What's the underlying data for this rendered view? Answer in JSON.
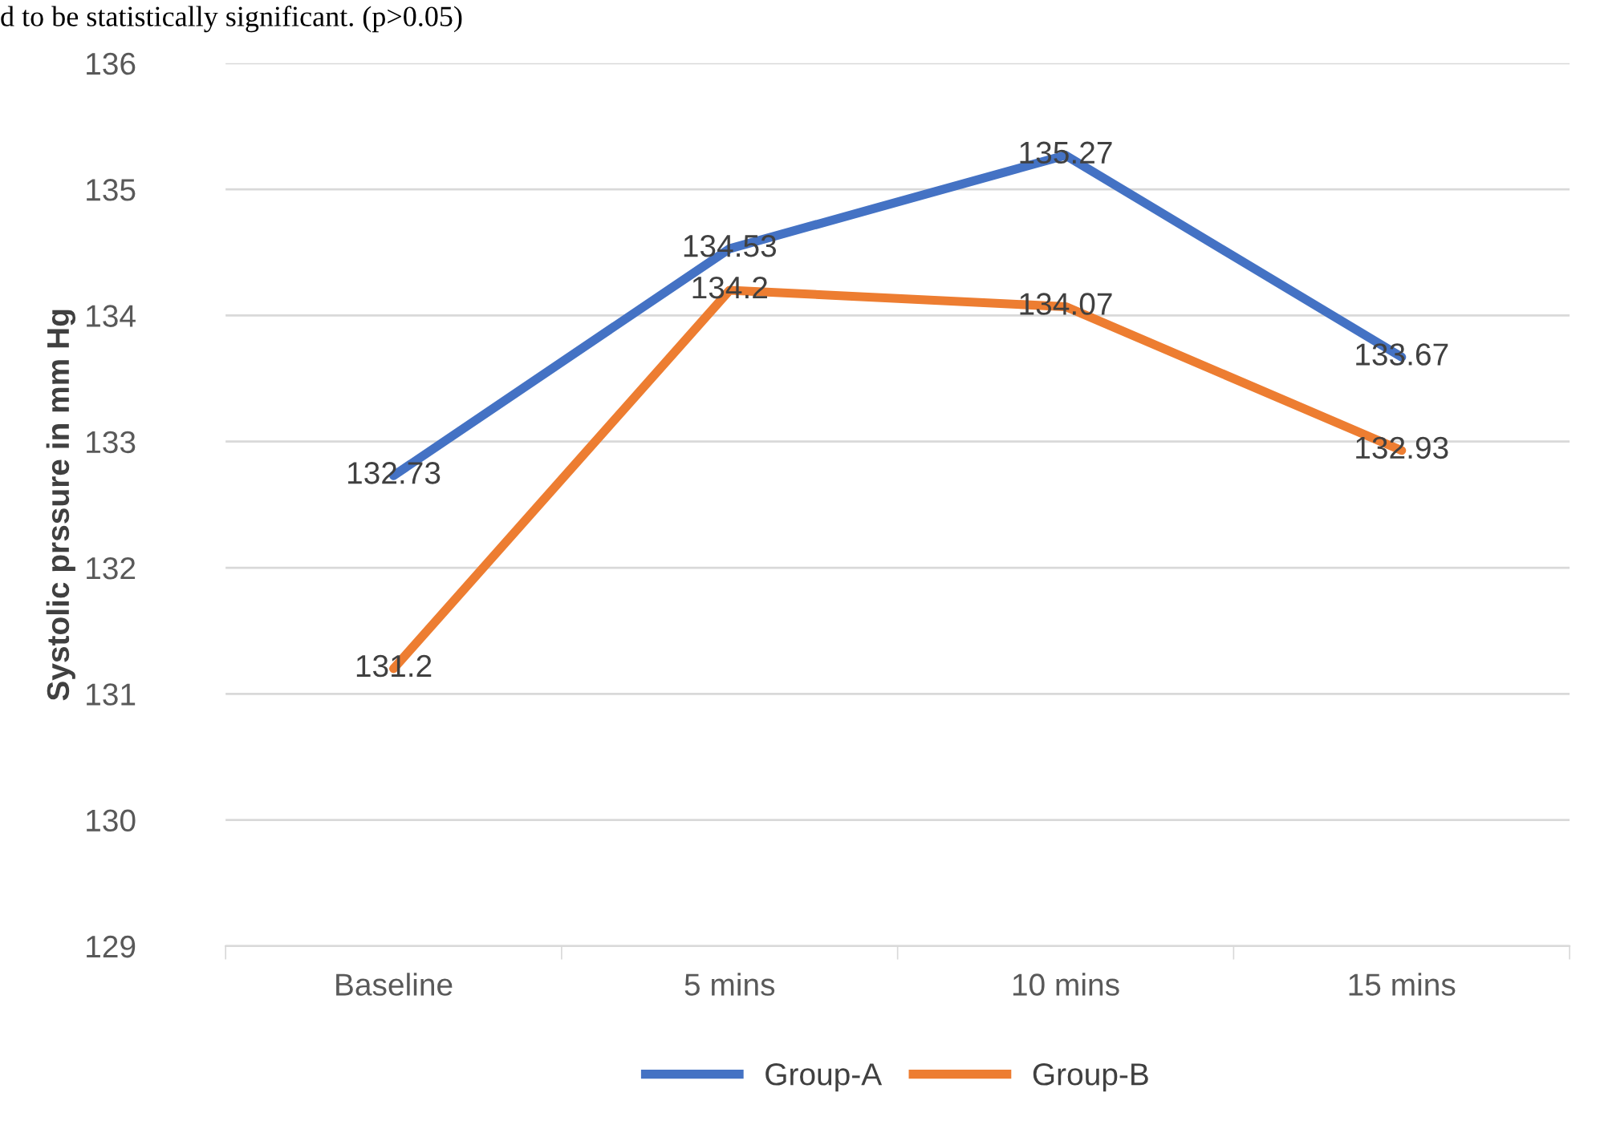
{
  "chart_data": {
    "type": "line",
    "ylabel": "Systolic prssure in mm Hg",
    "annotations": [
      "d to be statistically significant. (p>0.05)"
    ],
    "categories": [
      "Baseline",
      "5 mins",
      "10 mins",
      "15 mins"
    ],
    "series": [
      {
        "name": "Group-A",
        "color": "#4472c4",
        "values": [
          132.73,
          134.53,
          135.27,
          133.67
        ]
      },
      {
        "name": "Group-B",
        "color": "#ed7d31",
        "values": [
          131.2,
          134.2,
          134.07,
          132.93
        ]
      }
    ],
    "ylim": [
      129,
      136
    ],
    "yticks": [
      129,
      130,
      131,
      132,
      133,
      134,
      135,
      136
    ],
    "grid": "y",
    "legend": "bottom",
    "data_labels": true,
    "marker": "none",
    "line_style": "solid"
  }
}
